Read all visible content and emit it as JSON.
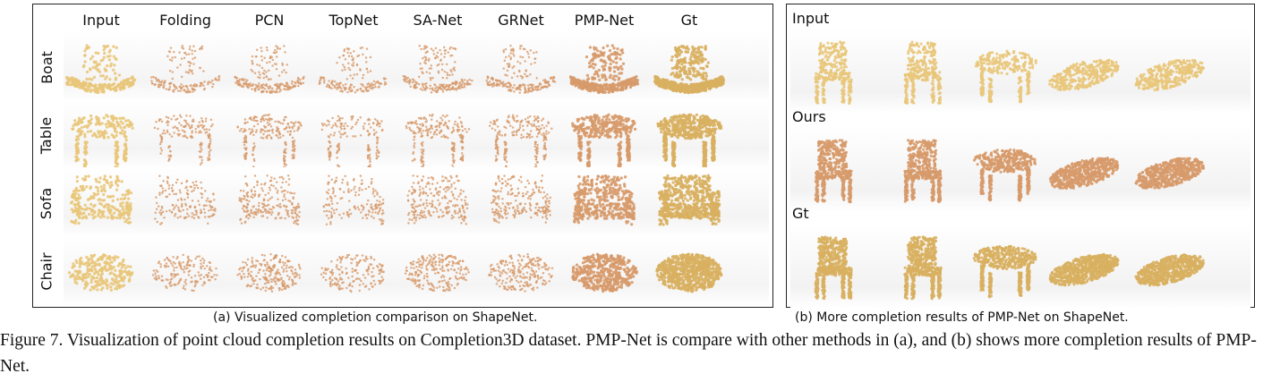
{
  "panel_a": {
    "columns": [
      "Input",
      "Folding",
      "PCN",
      "TopNet",
      "SA-Net",
      "GRNet",
      "PMP-Net",
      "Gt"
    ],
    "rows": [
      "Boat",
      "Table",
      "Sofa",
      "Chair"
    ],
    "caption": "(a) Visualized completion comparison on ShapeNet."
  },
  "panel_b": {
    "rows": [
      "Input",
      "Ours",
      "Gt"
    ],
    "caption": "(b) More completion results of PMP-Net on ShapeNet."
  },
  "figure_caption": "Figure 7. Visualization of point cloud completion results on Completion3D dataset. PMP-Net is compare with other methods in (a), and (b) shows more completion results of PMP-Net.",
  "colors": {
    "input_yellow": "#e9c77a",
    "result_orange": "#d79a6a",
    "gt_yellow": "#d8b060",
    "border": "#222222"
  },
  "icons": [
    "point-cloud-boat",
    "point-cloud-table",
    "point-cloud-sofa",
    "point-cloud-chair",
    "point-cloud-car"
  ]
}
